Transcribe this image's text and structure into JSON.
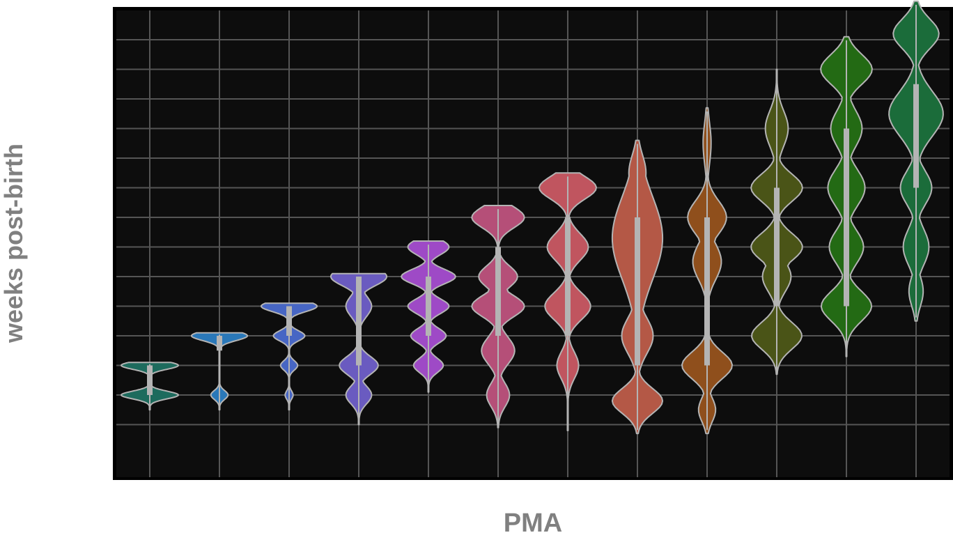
{
  "chart_data": {
    "type": "violin",
    "title": "",
    "xlabel": "PMA",
    "ylabel": "weeks post-birth",
    "theme": {
      "background": "#0d0d0d",
      "grid": "#555555",
      "outline": "#b4b4b4",
      "box": "#b4b4b4"
    },
    "grid": true,
    "y_lines": 15,
    "ylim": [
      0,
      15
    ],
    "violins": [
      {
        "color": "#1d6b5d",
        "ymin": 1.5,
        "ymax": 3.1,
        "q1": 2.0,
        "q3": 3.0,
        "lobes": [
          {
            "y": 2.0,
            "w": 1.0,
            "s": 0.13
          },
          {
            "y": 3.0,
            "w": 1.0,
            "s": 0.13
          }
        ]
      },
      {
        "color": "#2a78b9",
        "ymin": 1.5,
        "ymax": 4.1,
        "q1": 3.5,
        "q3": 4.0,
        "lobes": [
          {
            "y": 4.0,
            "w": 0.98,
            "s": 0.16
          },
          {
            "y": 2.0,
            "w": 0.3,
            "s": 0.15
          }
        ]
      },
      {
        "color": "#4766c4",
        "ymin": 1.5,
        "ymax": 5.1,
        "q1": 4.0,
        "q3": 5.0,
        "lobes": [
          {
            "y": 5.0,
            "w": 0.98,
            "s": 0.18
          },
          {
            "y": 4.0,
            "w": 0.55,
            "s": 0.17
          },
          {
            "y": 3.0,
            "w": 0.3,
            "s": 0.16
          },
          {
            "y": 2.0,
            "w": 0.14,
            "s": 0.14
          }
        ]
      },
      {
        "color": "#6a5bc0",
        "ymin": 1.0,
        "ymax": 6.1,
        "q1": 3.0,
        "q3": 6.0,
        "lobes": [
          {
            "y": 6.0,
            "w": 0.98,
            "s": 0.3
          },
          {
            "y": 5.0,
            "w": 0.45,
            "s": 0.35
          },
          {
            "y": 3.0,
            "w": 0.68,
            "s": 0.3
          },
          {
            "y": 2.0,
            "w": 0.45,
            "s": 0.3
          }
        ]
      },
      {
        "color": "#9e4ac6",
        "ymin": 2.1,
        "ymax": 7.2,
        "q1": 4.0,
        "q3": 6.0,
        "lobes": [
          {
            "y": 7.0,
            "w": 0.72,
            "s": 0.25
          },
          {
            "y": 6.0,
            "w": 0.95,
            "s": 0.24
          },
          {
            "y": 5.0,
            "w": 0.72,
            "s": 0.24
          },
          {
            "y": 4.0,
            "w": 0.62,
            "s": 0.24
          },
          {
            "y": 3.0,
            "w": 0.52,
            "s": 0.24
          }
        ]
      },
      {
        "color": "#b54f78",
        "ymin": 0.9,
        "ymax": 8.4,
        "q1": 4.0,
        "q3": 7.0,
        "lobes": [
          {
            "y": 8.0,
            "w": 0.92,
            "s": 0.35
          },
          {
            "y": 6.0,
            "w": 0.68,
            "s": 0.35
          },
          {
            "y": 5.0,
            "w": 0.92,
            "s": 0.35
          },
          {
            "y": 3.5,
            "w": 0.58,
            "s": 0.45
          },
          {
            "y": 2.0,
            "w": 0.4,
            "s": 0.4
          }
        ]
      },
      {
        "color": "#c0555f",
        "ymin": 0.8,
        "ymax": 9.5,
        "q1": 4.0,
        "q3": 8.0,
        "lobes": [
          {
            "y": 9.0,
            "w": 1.0,
            "s": 0.38
          },
          {
            "y": 7.0,
            "w": 0.72,
            "s": 0.45
          },
          {
            "y": 5.0,
            "w": 0.8,
            "s": 0.45
          },
          {
            "y": 3.0,
            "w": 0.38,
            "s": 0.45
          }
        ]
      },
      {
        "color": "#b45846",
        "ymin": 0.7,
        "ymax": 10.6,
        "q1": 3.0,
        "q3": 8.0,
        "lobes": [
          {
            "y": 7.3,
            "w": 0.88,
            "s": 1.4
          },
          {
            "y": 9.5,
            "w": 0.3,
            "s": 0.6
          },
          {
            "y": 4.0,
            "w": 0.55,
            "s": 0.6
          },
          {
            "y": 1.8,
            "w": 0.88,
            "s": 0.42
          }
        ]
      },
      {
        "color": "#8f4f1c",
        "ymin": 0.7,
        "ymax": 11.7,
        "q1": 3.0,
        "q3": 8.0,
        "lobes": [
          {
            "y": 8.0,
            "w": 0.68,
            "s": 0.55
          },
          {
            "y": 6.5,
            "w": 0.5,
            "s": 0.6
          },
          {
            "y": 3.0,
            "w": 0.88,
            "s": 0.45
          },
          {
            "y": 10.5,
            "w": 0.14,
            "s": 0.7
          },
          {
            "y": 1.5,
            "w": 0.3,
            "s": 0.4
          }
        ]
      },
      {
        "color": "#4a5417",
        "ymin": 2.7,
        "ymax": 13.0,
        "q1": 5.0,
        "q3": 9.0,
        "lobes": [
          {
            "y": 9.0,
            "w": 0.9,
            "s": 0.45
          },
          {
            "y": 7.0,
            "w": 0.9,
            "s": 0.45
          },
          {
            "y": 4.0,
            "w": 0.88,
            "s": 0.45
          },
          {
            "y": 11.0,
            "w": 0.4,
            "s": 0.6
          },
          {
            "y": 6.0,
            "w": 0.5,
            "s": 0.5
          }
        ]
      },
      {
        "color": "#236a14",
        "ymin": 3.3,
        "ymax": 14.1,
        "q1": 5.0,
        "q3": 11.0,
        "lobes": [
          {
            "y": 13.0,
            "w": 0.9,
            "s": 0.5
          },
          {
            "y": 11.0,
            "w": 0.55,
            "s": 0.6
          },
          {
            "y": 9.0,
            "w": 0.65,
            "s": 0.6
          },
          {
            "y": 7.0,
            "w": 0.6,
            "s": 0.55
          },
          {
            "y": 5.0,
            "w": 0.88,
            "s": 0.5
          }
        ]
      },
      {
        "color": "#1b6c3a",
        "ymin": 4.5,
        "ymax": 15.3,
        "q1": 9.0,
        "q3": 12.5,
        "lobes": [
          {
            "y": 14.2,
            "w": 0.8,
            "s": 0.5
          },
          {
            "y": 11.5,
            "w": 0.95,
            "s": 0.75
          },
          {
            "y": 9.0,
            "w": 0.55,
            "s": 0.55
          },
          {
            "y": 7.0,
            "w": 0.45,
            "s": 0.6
          },
          {
            "y": 5.5,
            "w": 0.25,
            "s": 0.5
          }
        ]
      }
    ]
  }
}
